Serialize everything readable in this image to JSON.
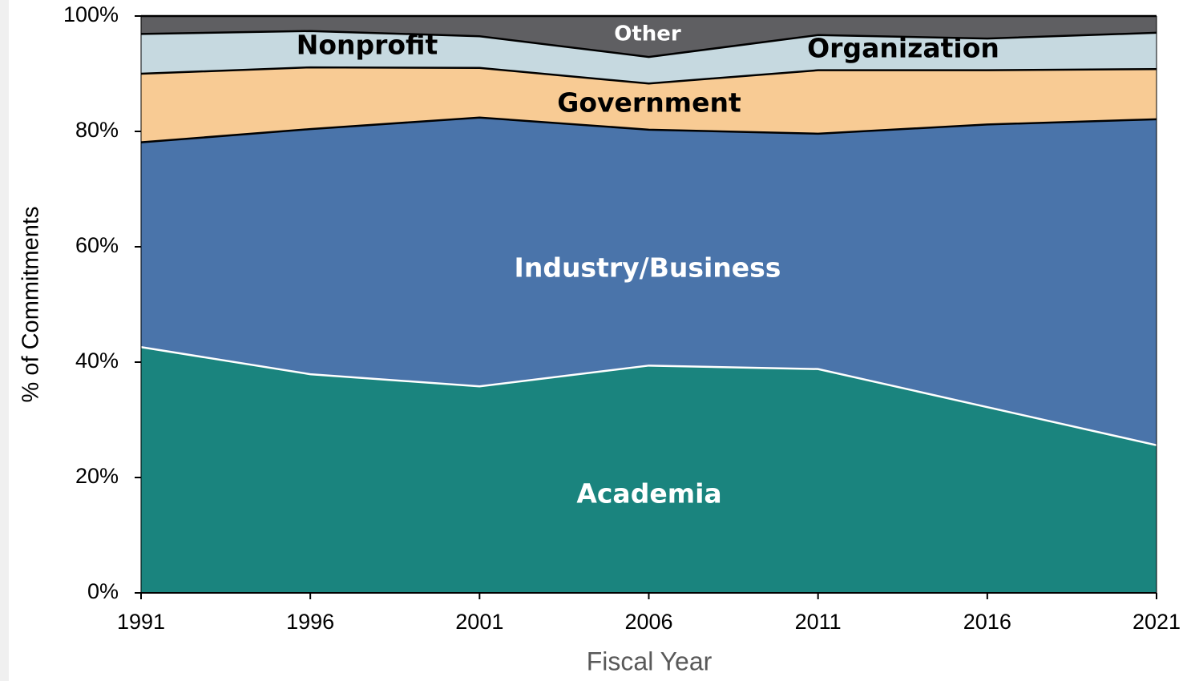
{
  "chart_data": {
    "type": "stacked_area",
    "x_label": "Fiscal Year",
    "y_label": "% of Commitments",
    "x": [
      1991,
      1996,
      2001,
      2006,
      2011,
      2016,
      2021
    ],
    "xlim": [
      1991,
      2021
    ],
    "xticks": [
      1991,
      1996,
      2001,
      2006,
      2011,
      2016,
      2021
    ],
    "ylim": [
      0,
      100
    ],
    "yticks": [
      {
        "value": 0,
        "label": "0%"
      },
      {
        "value": 20,
        "label": "20%"
      },
      {
        "value": 40,
        "label": "40%"
      },
      {
        "value": 60,
        "label": "60%"
      },
      {
        "value": 80,
        "label": "80%"
      },
      {
        "value": 100,
        "label": "100%"
      }
    ],
    "series": [
      {
        "labels": [
          "Academia"
        ],
        "color": "#1a847e",
        "edge_color": "#ffffff",
        "label_color": "#ffffff",
        "values": [
          42.6,
          37.9,
          35.8,
          39.4,
          38.8,
          32.2,
          25.6
        ]
      },
      {
        "labels": [
          "Industry/Business"
        ],
        "color": "#4a74aa",
        "edge_color": "#000000",
        "label_color": "#ffffff",
        "values": [
          35.5,
          42.5,
          46.6,
          40.9,
          40.8,
          49.0,
          56.5
        ]
      },
      {
        "labels": [
          "Government"
        ],
        "color": "#f8cb94",
        "edge_color": "#000000",
        "label_color": "#000000",
        "values": [
          11.9,
          10.7,
          8.6,
          8.0,
          11.0,
          9.4,
          8.7
        ]
      },
      {
        "labels": [
          "Nonprofit",
          "Organization"
        ],
        "color": "#c6d9e0",
        "edge_color": "#000000",
        "label_color": "#000000",
        "values": [
          6.9,
          6.3,
          5.5,
          4.6,
          6.1,
          5.5,
          6.3
        ]
      },
      {
        "labels": [
          "Other"
        ],
        "color": "#5f5f62",
        "edge_color": "#000000",
        "label_color": "#ffffff",
        "values": [
          3.1,
          2.6,
          3.5,
          7.1,
          3.3,
          3.9,
          2.9
        ]
      }
    ]
  }
}
